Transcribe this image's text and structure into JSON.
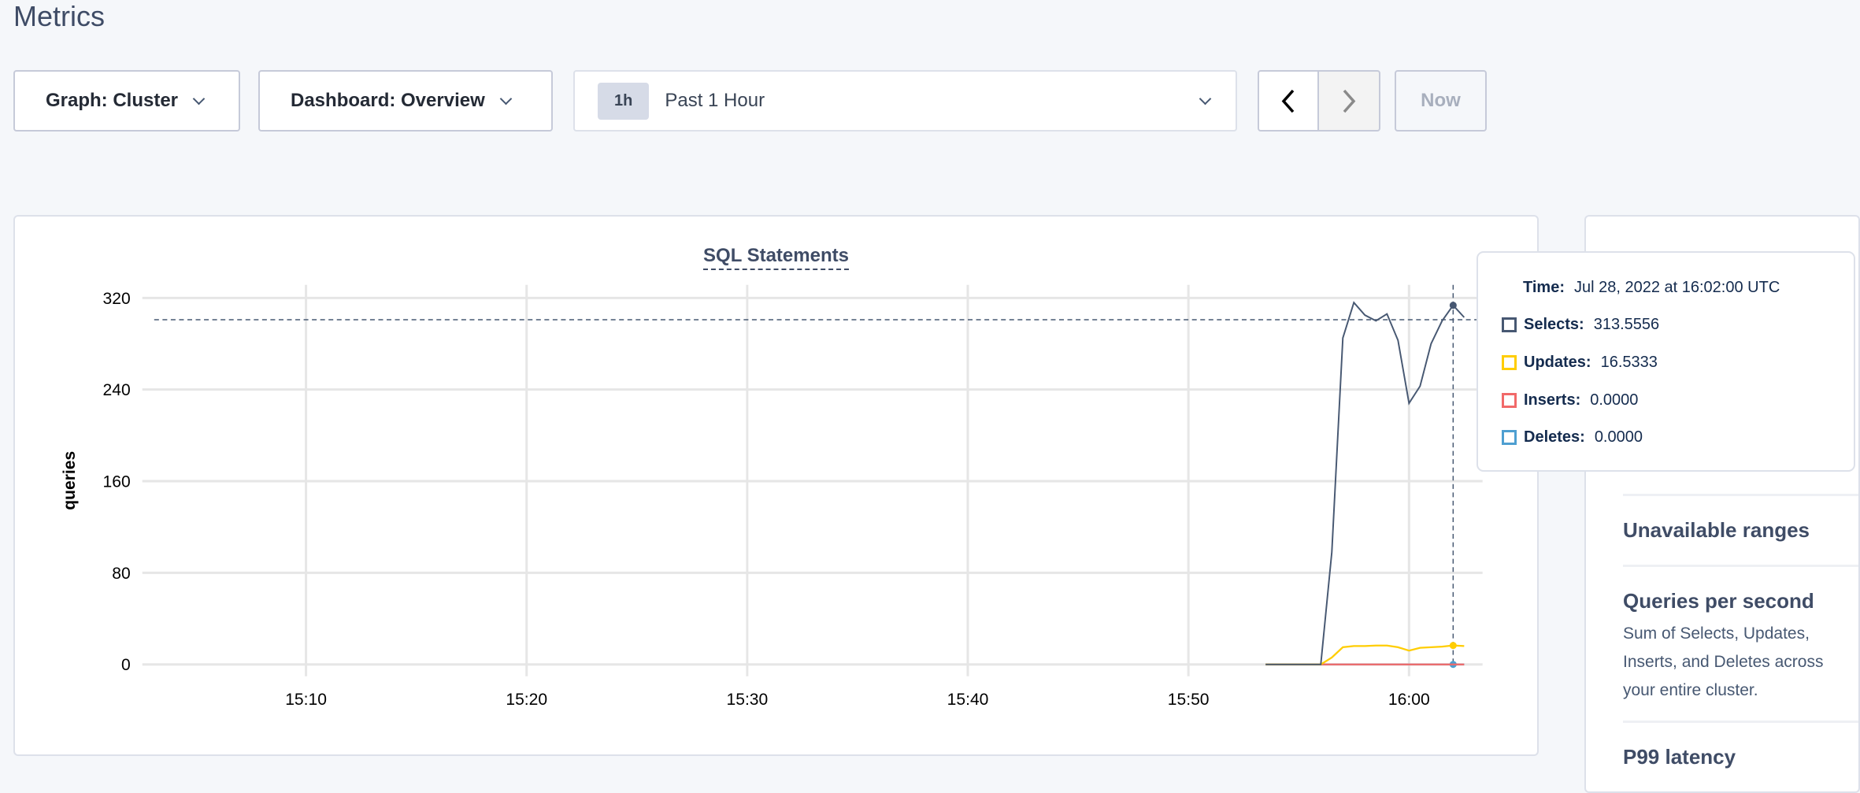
{
  "page": {
    "title": "Metrics"
  },
  "toolbar": {
    "graph_label": "Graph: Cluster",
    "dashboard_label": "Dashboard: Overview",
    "time_badge": "1h",
    "time_range": "Past 1 Hour",
    "prev_icon": "chevron-left-icon",
    "next_icon": "chevron-right-icon",
    "now_label": "Now"
  },
  "chart_data": {
    "type": "line",
    "title": "SQL Statements",
    "ylabel": "queries",
    "xlabel": "",
    "ylim": [
      0,
      320
    ],
    "yticks": [
      "0",
      "80",
      "160",
      "240",
      "320"
    ],
    "xticks": [
      "15:10",
      "15:20",
      "15:30",
      "15:40",
      "15:50",
      "16:00"
    ],
    "grid": true,
    "x": [
      "15:53:30",
      "15:54:00",
      "15:54:30",
      "15:55:00",
      "15:55:30",
      "15:56:00",
      "15:56:30",
      "15:57:00",
      "15:57:30",
      "15:58:00",
      "15:58:30",
      "15:59:00",
      "15:59:30",
      "16:00:00",
      "16:00:30",
      "16:01:00",
      "16:01:30",
      "16:02:00",
      "16:02:30"
    ],
    "series": [
      {
        "name": "Selects",
        "color": "#475872",
        "values": [
          0,
          0,
          0,
          0,
          0,
          0,
          98,
          285,
          316,
          305,
          300,
          306,
          283,
          228,
          243,
          280,
          300,
          313.5556,
          303
        ]
      },
      {
        "name": "Updates",
        "color": "#ffcd02",
        "values": [
          0,
          0,
          0,
          0,
          0,
          0,
          6,
          15,
          16,
          16,
          16.5,
          16.5,
          15,
          12,
          14.5,
          15,
          15.5,
          16.5333,
          16
        ]
      },
      {
        "name": "Inserts",
        "color": "#f16969",
        "values": [
          0,
          0,
          0,
          0,
          0,
          0,
          0,
          0,
          0,
          0,
          0,
          0,
          0,
          0,
          0,
          0,
          0,
          0,
          0
        ]
      },
      {
        "name": "Deletes",
        "color": "#4e9fd1",
        "values": [
          0,
          0,
          0,
          0,
          0,
          0,
          0,
          0,
          0,
          0,
          0,
          0,
          0,
          0,
          0,
          0,
          0,
          0,
          0
        ]
      }
    ],
    "hover": {
      "time": "16:02:00",
      "y_value": 301
    }
  },
  "tooltip": {
    "time_label": "Time:",
    "time_value": "Jul 28, 2022 at 16:02:00 UTC",
    "rows": [
      {
        "label": "Selects:",
        "value": "313.5556",
        "color": "#475872"
      },
      {
        "label": "Updates:",
        "value": "16.5333",
        "color": "#ffcd02"
      },
      {
        "label": "Inserts:",
        "value": "0.0000",
        "color": "#f16969"
      },
      {
        "label": "Deletes:",
        "value": "0.0000",
        "color": "#4e9fd1"
      }
    ]
  },
  "right_panel": {
    "items": [
      {
        "title": "Unavailable ranges"
      },
      {
        "title": "Queries per second",
        "description_line1": "Sum of Selects, Updates, Inserts, and Deletes across",
        "description_line2": "your entire cluster."
      },
      {
        "title": "P99 latency"
      }
    ]
  }
}
